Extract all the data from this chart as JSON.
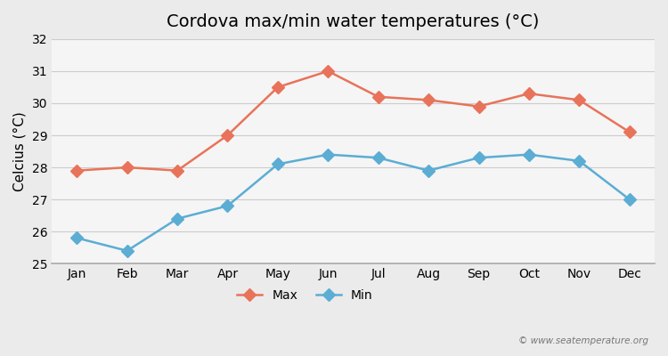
{
  "title": "Cordova max/min water temperatures (°C)",
  "xlabel": "",
  "ylabel": "Celcius (°C)",
  "months": [
    "Jan",
    "Feb",
    "Mar",
    "Apr",
    "May",
    "Jun",
    "Jul",
    "Aug",
    "Sep",
    "Oct",
    "Nov",
    "Dec"
  ],
  "max_temps": [
    27.9,
    28.0,
    27.9,
    29.0,
    30.5,
    31.0,
    30.2,
    30.1,
    29.9,
    30.3,
    30.1,
    29.1
  ],
  "min_temps": [
    25.8,
    25.4,
    26.4,
    26.8,
    28.1,
    28.4,
    28.3,
    27.9,
    28.3,
    28.4,
    28.2,
    27.0
  ],
  "max_color": "#e8735a",
  "min_color": "#5badd4",
  "ylim": [
    25.0,
    32.0
  ],
  "yticks": [
    25,
    26,
    27,
    28,
    29,
    30,
    31,
    32
  ],
  "grid_color": "#cccccc",
  "bg_color": "#ebebeb",
  "plot_bg_color": "#f5f5f5",
  "title_fontsize": 14,
  "axis_label_fontsize": 11,
  "tick_fontsize": 10,
  "legend_fontsize": 10,
  "watermark": "© www.seatemperature.org",
  "marker_style": "D",
  "line_width": 1.8,
  "marker_size": 7
}
